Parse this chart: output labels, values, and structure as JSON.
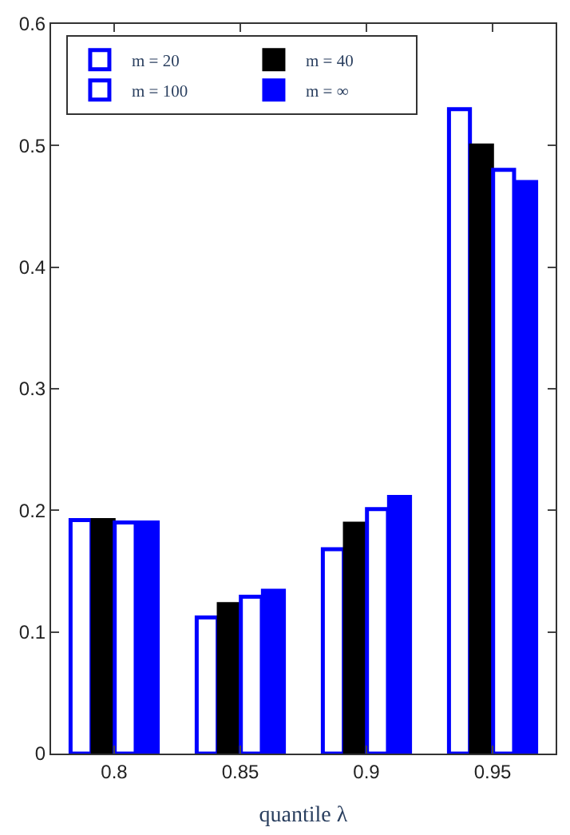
{
  "chart_data": {
    "type": "bar",
    "xlabel": "quantile λ",
    "categories": [
      "0.8",
      "0.85",
      "0.9",
      "0.95"
    ],
    "series": [
      {
        "name": "m = 20",
        "color": "#ffffff",
        "values": [
          0.192,
          0.112,
          0.168,
          0.53
        ]
      },
      {
        "name": "m = 40",
        "color": "#000000",
        "values": [
          0.192,
          0.123,
          0.189,
          0.5
        ]
      },
      {
        "name": "m = 100",
        "color": "#ffffff",
        "values": [
          0.19,
          0.129,
          0.201,
          0.48
        ]
      },
      {
        "name": "m = ∞",
        "color": "#0000ff",
        "values": [
          0.19,
          0.134,
          0.211,
          0.47
        ]
      }
    ],
    "ylim": [
      0,
      0.6
    ],
    "yticks": [
      0,
      0.1,
      0.2,
      0.3,
      0.4,
      0.5,
      0.6
    ],
    "legend": "top"
  }
}
